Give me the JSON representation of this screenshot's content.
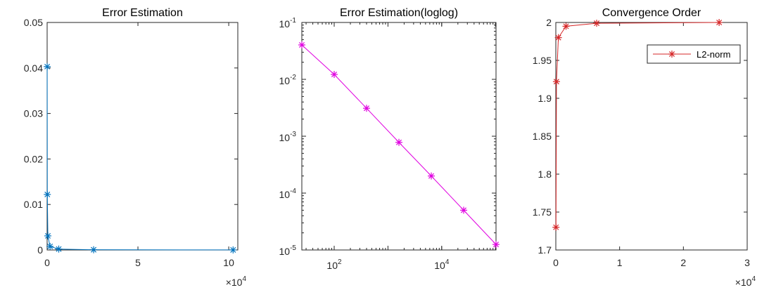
{
  "chart_data": [
    {
      "type": "line",
      "title": "Error Estimation",
      "xlabel": "",
      "ylabel": "",
      "xlim": [
        0,
        105000
      ],
      "ylim": [
        0,
        0.05
      ],
      "x_scale": "linear",
      "y_scale": "linear",
      "x_exponent_label": "×10",
      "x_exponent": "4",
      "x_ticks": [
        0,
        50000,
        100000
      ],
      "x_tick_labels": [
        "0",
        "5",
        "10"
      ],
      "y_ticks": [
        0,
        0.01,
        0.02,
        0.03,
        0.04,
        0.05
      ],
      "y_tick_labels": [
        "0",
        "0.01",
        "0.02",
        "0.03",
        "0.04",
        "0.05"
      ],
      "grid": false,
      "series": [
        {
          "color": "#0072BD",
          "marker": "asterisk",
          "x": [
            25,
            100,
            400,
            1600,
            6400,
            25600,
            102400
          ],
          "y": [
            0.0403,
            0.0122,
            0.0031,
            0.00078,
            0.0002,
            5e-05,
            1.25e-05
          ]
        }
      ]
    },
    {
      "type": "line",
      "title": "Error Estimation(loglog)",
      "xlabel": "",
      "ylabel": "",
      "xlim": [
        25,
        102400
      ],
      "ylim": [
        1e-05,
        0.1
      ],
      "x_scale": "log",
      "y_scale": "log",
      "x_ticks": [
        100,
        10000
      ],
      "x_tick_labels": [
        {
          "base": "10",
          "exp": "2"
        },
        {
          "base": "10",
          "exp": "4"
        }
      ],
      "y_ticks": [
        0.1,
        0.01,
        0.001,
        0.0001,
        1e-05
      ],
      "y_tick_labels": [
        {
          "base": "10",
          "exp": "-1"
        },
        {
          "base": "10",
          "exp": "-2"
        },
        {
          "base": "10",
          "exp": "-3"
        },
        {
          "base": "10",
          "exp": "-4"
        },
        {
          "base": "10",
          "exp": "-5"
        }
      ],
      "grid": false,
      "series": [
        {
          "color": "#E000E0",
          "marker": "asterisk",
          "x": [
            25,
            100,
            400,
            1600,
            6400,
            25600,
            102400
          ],
          "y": [
            0.0403,
            0.0122,
            0.0031,
            0.00078,
            0.0002,
            5e-05,
            1.25e-05
          ]
        }
      ]
    },
    {
      "type": "line",
      "title": "Convergence Order",
      "xlabel": "",
      "ylabel": "",
      "xlim": [
        0,
        30000
      ],
      "ylim": [
        1.7,
        2.0
      ],
      "x_scale": "linear",
      "y_scale": "linear",
      "x_exponent_label": "×10",
      "x_exponent": "4",
      "x_ticks": [
        0,
        10000,
        20000,
        30000
      ],
      "x_tick_labels": [
        "0",
        "1",
        "2",
        "3"
      ],
      "y_ticks": [
        1.7,
        1.75,
        1.8,
        1.85,
        1.9,
        1.95,
        2.0
      ],
      "y_tick_labels": [
        "1.7",
        "1.75",
        "1.8",
        "1.85",
        "1.9",
        "1.95",
        "2"
      ],
      "grid": false,
      "legend_position": "top-right",
      "series": [
        {
          "name": "L2-norm",
          "color": "#D62728",
          "marker": "asterisk",
          "x": [
            25,
            100,
            400,
            1600,
            6400,
            25600
          ],
          "y": [
            1.73,
            1.922,
            1.98,
            1.995,
            1.999,
            2.0
          ]
        }
      ]
    }
  ]
}
